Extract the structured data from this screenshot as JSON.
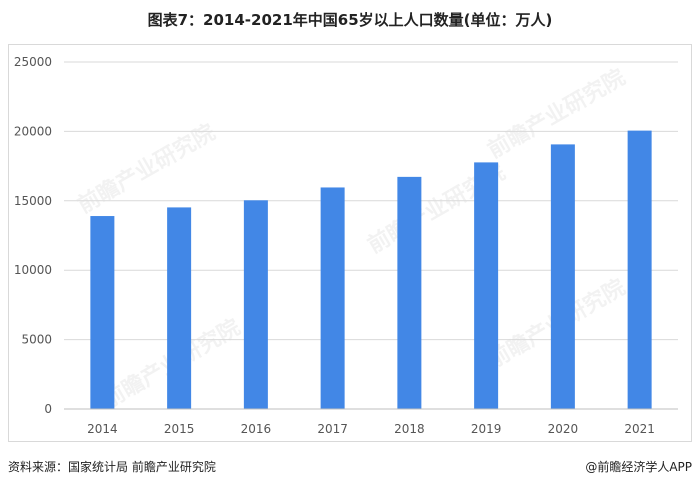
{
  "chart_data": {
    "type": "bar",
    "title": "图表7：2014-2021年中国65岁以上人口数量(单位：万人)",
    "categories": [
      "2014",
      "2015",
      "2016",
      "2017",
      "2018",
      "2019",
      "2020",
      "2021"
    ],
    "values": [
      13902,
      14524,
      15037,
      15961,
      16724,
      17767,
      19064,
      20056
    ],
    "ylim": [
      0,
      25000
    ],
    "yticks": [
      0,
      5000,
      10000,
      15000,
      20000,
      25000
    ],
    "grid": true,
    "bar_color": "#4287e6",
    "xlabel": "",
    "ylabel": ""
  },
  "footer": {
    "source": "资料来源：国家统计局 前瞻产业研究院",
    "brand": "@前瞻经济学人APP"
  },
  "watermark": "前瞻产业研究院"
}
